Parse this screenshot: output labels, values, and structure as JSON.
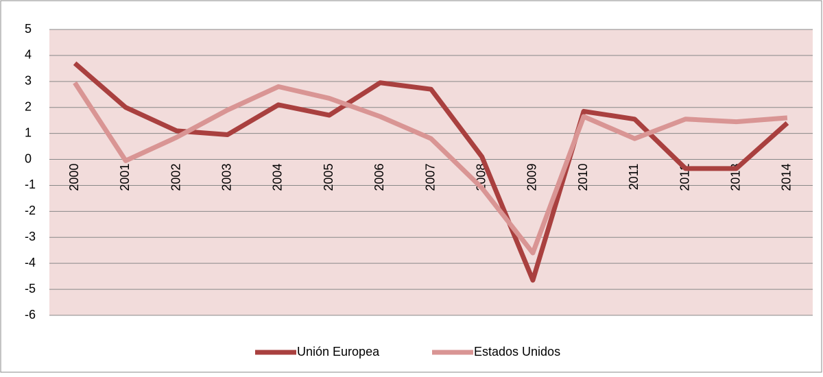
{
  "chart_data": {
    "type": "line",
    "categories": [
      "2000",
      "2001",
      "2002",
      "2003",
      "2004",
      "2005",
      "2006",
      "2007",
      "2008",
      "2009",
      "2010",
      "2011",
      "2012",
      "2013",
      "2014"
    ],
    "series": [
      {
        "name": "Unión Europea",
        "color": "#a9403f",
        "values": [
          3.7,
          2.0,
          1.1,
          0.95,
          2.1,
          1.7,
          2.95,
          2.7,
          0.1,
          -4.65,
          1.85,
          1.55,
          -0.35,
          -0.35,
          1.4
        ]
      },
      {
        "name": "Estados Unidos",
        "color": "#d99594",
        "values": [
          2.95,
          -0.05,
          0.85,
          1.9,
          2.8,
          2.35,
          1.65,
          0.8,
          -1.1,
          -3.6,
          1.65,
          0.8,
          1.55,
          1.45,
          1.6
        ]
      }
    ],
    "ylim": [
      -6,
      5
    ],
    "yticks": [
      -6,
      -5,
      -4,
      -3,
      -2,
      -1,
      0,
      1,
      2,
      3,
      4,
      5
    ],
    "grid": true,
    "legend": "bottom"
  }
}
